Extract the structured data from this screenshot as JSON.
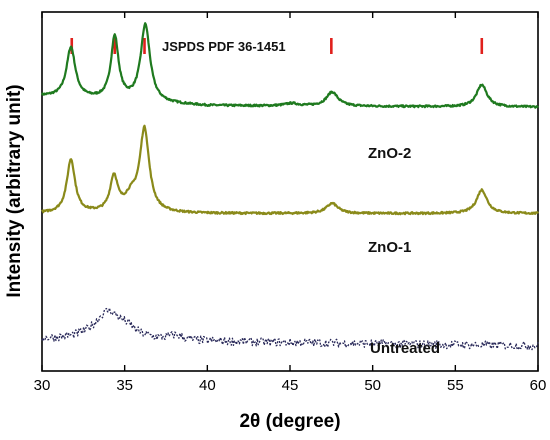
{
  "chart_data": {
    "type": "line",
    "title": "",
    "xlabel": "2θ (degree)",
    "ylabel": "Intensity (arbitrary unit)",
    "xlim": [
      30,
      60
    ],
    "xticks": [
      30,
      35,
      40,
      45,
      50,
      55,
      60
    ],
    "yticks": [],
    "grid": false,
    "reference": {
      "label": "JSPDS PDF 36-1451",
      "color": "#e0201c",
      "positions": [
        31.8,
        34.4,
        36.2,
        47.5,
        56.6
      ]
    },
    "series": [
      {
        "name": "ZnO-2",
        "color": "#1f7a1f",
        "style": "solid",
        "baseline": 0.53,
        "background": [
          [
            30,
            0.022
          ],
          [
            36.8,
            0.0
          ],
          [
            40,
            -0.008
          ],
          [
            60,
            -0.012
          ]
        ],
        "peaks": [
          {
            "x": 31.75,
            "height": 0.16,
            "width": 0.32
          },
          {
            "x": 34.4,
            "height": 0.2,
            "width": 0.28
          },
          {
            "x": 36.25,
            "height": 0.245,
            "width": 0.34
          },
          {
            "x": 47.55,
            "height": 0.045,
            "width": 0.42
          },
          {
            "x": 56.6,
            "height": 0.07,
            "width": 0.38
          },
          {
            "x": 45.1,
            "height": 0.008,
            "width": 0.5
          }
        ],
        "noise": 0.003
      },
      {
        "name": "ZnO-1",
        "color": "#8a8a1a",
        "style": "solid",
        "baseline": 0.18,
        "background": [
          [
            30,
            0.0
          ],
          [
            36.8,
            0.0
          ],
          [
            60,
            0.0
          ]
        ],
        "peaks": [
          {
            "x": 31.75,
            "height": 0.17,
            "width": 0.3
          },
          {
            "x": 34.35,
            "height": 0.11,
            "width": 0.28
          },
          {
            "x": 35.4,
            "height": 0.045,
            "width": 0.5
          },
          {
            "x": 36.2,
            "height": 0.26,
            "width": 0.34
          },
          {
            "x": 47.55,
            "height": 0.032,
            "width": 0.42
          },
          {
            "x": 56.6,
            "height": 0.075,
            "width": 0.38
          }
        ],
        "noise": 0.003
      },
      {
        "name": "Untreated",
        "color": "#2a2a5a",
        "style": "dotted",
        "baseline": -0.22,
        "background": [
          [
            30,
            0.0
          ],
          [
            60,
            -0.02
          ]
        ],
        "peaks": [
          {
            "x": 34.0,
            "height": 0.09,
            "width": 1.0
          },
          {
            "x": 35.2,
            "height": 0.02,
            "width": 0.6
          },
          {
            "x": 38.1,
            "height": 0.015,
            "width": 0.5
          }
        ],
        "noise": 0.013
      }
    ]
  }
}
